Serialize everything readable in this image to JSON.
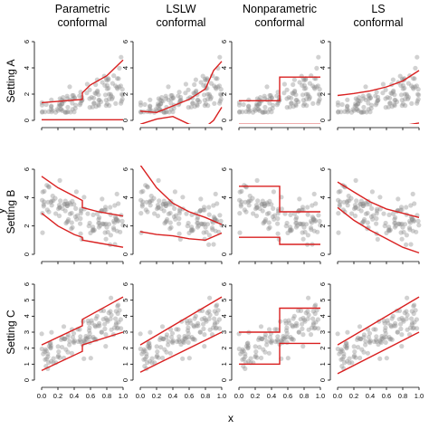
{
  "figure": {
    "columns": [
      "Parametric\nconformal",
      "LSLW\nconformal",
      "Nonparametric\nconformal",
      "LS\nconformal"
    ],
    "rows": [
      "Setting A",
      "Setting B",
      "Setting C"
    ],
    "xlabel": "x",
    "ylabel": "y",
    "xticks": [
      "0.0",
      "0.2",
      "0.4",
      "0.6",
      "0.8",
      "1.0"
    ],
    "row_yticks": [
      [
        "0",
        "2",
        "4",
        "6"
      ],
      [
        "0",
        "2",
        "4",
        "6"
      ],
      [
        "0",
        "1",
        "2",
        "3",
        "4",
        "5",
        "6"
      ]
    ]
  },
  "colors": {
    "band": "#d92020",
    "points": "#8c8c8c",
    "axis": "#000000"
  },
  "chart_data": {
    "type": "scatter",
    "description_free": true,
    "xlim": [
      0,
      1
    ],
    "row_ylim": [
      [
        0,
        6
      ],
      [
        0,
        6
      ],
      [
        0,
        6
      ]
    ],
    "points_per_panel": 120,
    "bands": {
      "A": {
        "parametric": {
          "x": [
            0,
            0.5,
            0.5,
            0.6,
            0.8,
            1.0
          ],
          "upper": [
            1.35,
            1.6,
            2.1,
            2.7,
            3.4,
            4.6
          ],
          "lower": [
            0.05,
            0.05,
            0.05,
            0.05,
            0.05,
            0.05
          ]
        },
        "lslw": {
          "x": [
            0,
            0.2,
            0.4,
            0.6,
            0.8,
            0.9,
            1.0
          ],
          "upper": [
            0.7,
            0.6,
            1.1,
            1.6,
            2.4,
            3.8,
            4.5
          ],
          "lower": [
            -0.3,
            0.1,
            0.3,
            -0.3,
            -0.5,
            0.0,
            1.0
          ]
        },
        "nonparametric": {
          "x": [
            0,
            0.5,
            0.5,
            1.0
          ],
          "upper": [
            1.5,
            1.5,
            3.3,
            3.3
          ],
          "lower": [
            -0.3,
            -0.3,
            -0.3,
            -0.3
          ]
        },
        "ls": {
          "x": [
            0,
            0.2,
            0.4,
            0.6,
            0.8,
            1.0
          ],
          "upper": [
            1.9,
            2.05,
            2.25,
            2.55,
            3.0,
            3.8
          ],
          "lower": [
            -1.4,
            -1.15,
            -0.95,
            -0.7,
            -0.4,
            -0.2
          ]
        }
      },
      "B": {
        "parametric": {
          "x": [
            0,
            0.2,
            0.4,
            0.5,
            0.5,
            0.7,
            1.0
          ],
          "upper": [
            5.5,
            4.7,
            4.1,
            3.8,
            3.3,
            3.0,
            2.7
          ],
          "lower": [
            2.9,
            2.0,
            1.4,
            1.2,
            1.0,
            0.8,
            0.5
          ]
        },
        "lslw": {
          "x": [
            0,
            0.2,
            0.4,
            0.6,
            0.8,
            1.0
          ],
          "upper": [
            6.3,
            4.7,
            3.6,
            3.0,
            2.6,
            2.1
          ],
          "lower": [
            1.6,
            1.4,
            1.3,
            1.1,
            1.0,
            1.5
          ]
        },
        "nonparametric": {
          "x": [
            0,
            0.5,
            0.5,
            1.0
          ],
          "upper": [
            4.8,
            4.8,
            3.0,
            3.0
          ],
          "lower": [
            1.2,
            1.2,
            0.7,
            0.7
          ]
        },
        "ls": {
          "x": [
            0,
            0.2,
            0.4,
            0.6,
            0.8,
            1.0
          ],
          "upper": [
            5.1,
            4.4,
            3.7,
            3.2,
            2.9,
            2.6
          ],
          "lower": [
            3.3,
            2.4,
            1.7,
            1.1,
            0.5,
            0.1
          ]
        }
      },
      "C": {
        "parametric": {
          "x": [
            0,
            0.5,
            0.5,
            1.0
          ],
          "upper": [
            2.2,
            3.4,
            3.8,
            5.2
          ],
          "lower": [
            0.6,
            1.8,
            2.2,
            3.0
          ]
        },
        "lslw": {
          "x": [
            0,
            1.0
          ],
          "upper": [
            2.2,
            5.2
          ],
          "lower": [
            0.5,
            3.0
          ]
        },
        "nonparametric": {
          "x": [
            0,
            0.5,
            0.5,
            1.0
          ],
          "upper": [
            3.0,
            3.0,
            4.5,
            4.5
          ],
          "lower": [
            1.0,
            1.0,
            2.3,
            2.3
          ]
        },
        "ls": {
          "x": [
            0,
            1.0
          ],
          "upper": [
            2.2,
            5.2
          ],
          "lower": [
            0.4,
            3.0
          ]
        }
      }
    }
  }
}
